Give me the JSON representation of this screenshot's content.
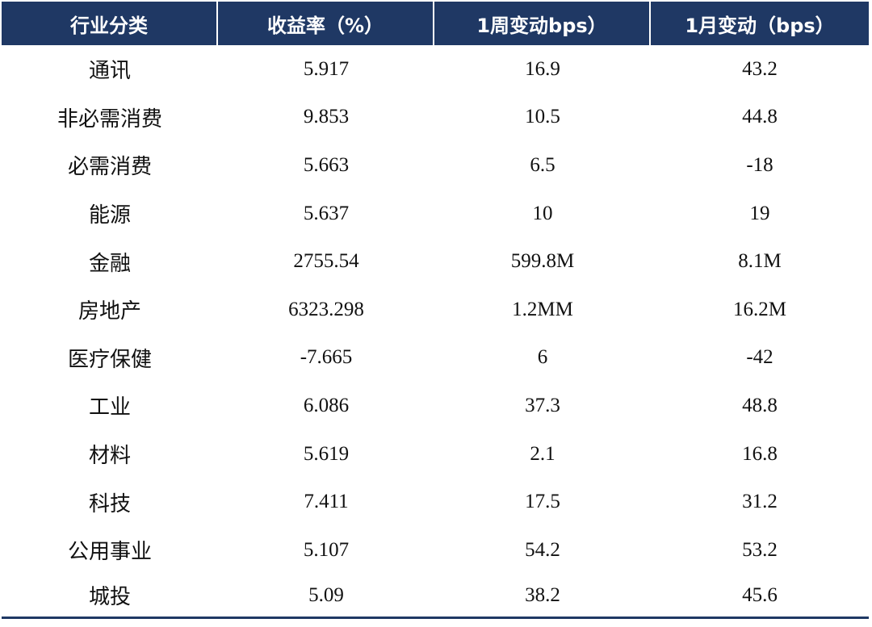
{
  "table": {
    "headers": [
      "行业分类",
      "收益率（%）",
      "1周变动bps）",
      "1月变动（bps）"
    ],
    "rows": [
      {
        "industry": "通讯",
        "yield": "5.917",
        "week_change": "16.9",
        "month_change": "43.2"
      },
      {
        "industry": "非必需消费",
        "yield": "9.853",
        "week_change": "10.5",
        "month_change": "44.8"
      },
      {
        "industry": "必需消费",
        "yield": "5.663",
        "week_change": "6.5",
        "month_change": "-18"
      },
      {
        "industry": "能源",
        "yield": "5.637",
        "week_change": "10",
        "month_change": "19"
      },
      {
        "industry": "金融",
        "yield": "2755.54",
        "week_change": "599.8M",
        "month_change": "8.1M"
      },
      {
        "industry": "房地产",
        "yield": "6323.298",
        "week_change": "1.2MM",
        "month_change": "16.2M"
      },
      {
        "industry": "医疗保健",
        "yield": "-7.665",
        "week_change": "6",
        "month_change": "-42"
      },
      {
        "industry": "工业",
        "yield": "6.086",
        "week_change": "37.3",
        "month_change": "48.8"
      },
      {
        "industry": "材料",
        "yield": "5.619",
        "week_change": "2.1",
        "month_change": "16.8"
      },
      {
        "industry": "科技",
        "yield": "7.411",
        "week_change": "17.5",
        "month_change": "31.2"
      },
      {
        "industry": "公用事业",
        "yield": "5.107",
        "week_change": "54.2",
        "month_change": "53.2"
      },
      {
        "industry": "城投",
        "yield": "5.09",
        "week_change": "38.2",
        "month_change": "45.6"
      }
    ]
  },
  "colors": {
    "header_bg": "#1f3864",
    "header_text": "#ffffff",
    "body_text": "#111111"
  }
}
